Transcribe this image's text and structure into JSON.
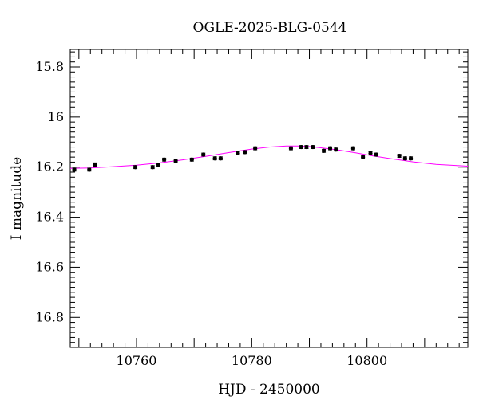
{
  "chart_data": {
    "type": "scatter",
    "title": "OGLE-2025-BLG-0544",
    "xlabel": "HJD - 2450000",
    "ylabel": "I magnitude",
    "xlim": [
      10748.5,
      10817.5
    ],
    "ylim": [
      16.92,
      15.73
    ],
    "y_inverted": true,
    "x_ticks": [
      10760,
      10780,
      10800
    ],
    "y_ticks": [
      15.8,
      16,
      16.2,
      16.4,
      16.6,
      16.8
    ],
    "x_tick_labels": [
      "10760",
      "10780",
      "10800"
    ],
    "y_tick_labels": [
      "15.8",
      "16",
      "16.2",
      "16.4",
      "16.6",
      "16.8"
    ],
    "grid": false,
    "colors": {
      "points": "#000000",
      "model": "#ff00ff"
    },
    "series": [
      {
        "kind": "points",
        "x": [
          10749.2,
          10751.8,
          10752.8,
          10759.8,
          10762.8,
          10763.8,
          10764.8,
          10766.8,
          10769.6,
          10771.6,
          10773.6,
          10774.6,
          10777.6,
          10778.8,
          10780.6,
          10786.8,
          10788.6,
          10789.5,
          10790.6,
          10792.5,
          10793.6,
          10794.6,
          10797.6,
          10799.3,
          10800.6,
          10801.6,
          10805.6,
          10806.6,
          10807.6
        ],
        "y": [
          16.21,
          16.21,
          16.19,
          16.2,
          16.2,
          16.19,
          16.17,
          16.175,
          16.17,
          16.15,
          16.165,
          16.165,
          16.145,
          16.14,
          16.125,
          16.125,
          16.12,
          16.12,
          16.12,
          16.135,
          16.125,
          16.13,
          16.125,
          16.16,
          16.145,
          16.15,
          16.155,
          16.165,
          16.165
        ],
        "yerr": [
          0.006,
          0.006,
          0.007,
          0.006,
          0.006,
          0.006,
          0.006,
          0.006,
          0.006,
          0.006,
          0.006,
          0.006,
          0.006,
          0.006,
          0.006,
          0.006,
          0.006,
          0.006,
          0.006,
          0.006,
          0.006,
          0.006,
          0.006,
          0.006,
          0.006,
          0.006,
          0.006,
          0.006,
          0.006
        ]
      },
      {
        "kind": "model",
        "x": [
          10748.5,
          10752,
          10756,
          10760,
          10764,
          10768,
          10772,
          10776,
          10780,
          10783,
          10786,
          10788,
          10790,
          10792,
          10795,
          10798,
          10801,
          10804,
          10808,
          10812,
          10817.5
        ],
        "y": [
          16.205,
          16.203,
          16.198,
          16.192,
          16.183,
          16.171,
          16.157,
          16.142,
          16.128,
          16.12,
          16.116,
          16.116,
          16.118,
          16.123,
          16.132,
          16.143,
          16.155,
          16.166,
          16.179,
          16.189,
          16.196
        ]
      }
    ]
  }
}
